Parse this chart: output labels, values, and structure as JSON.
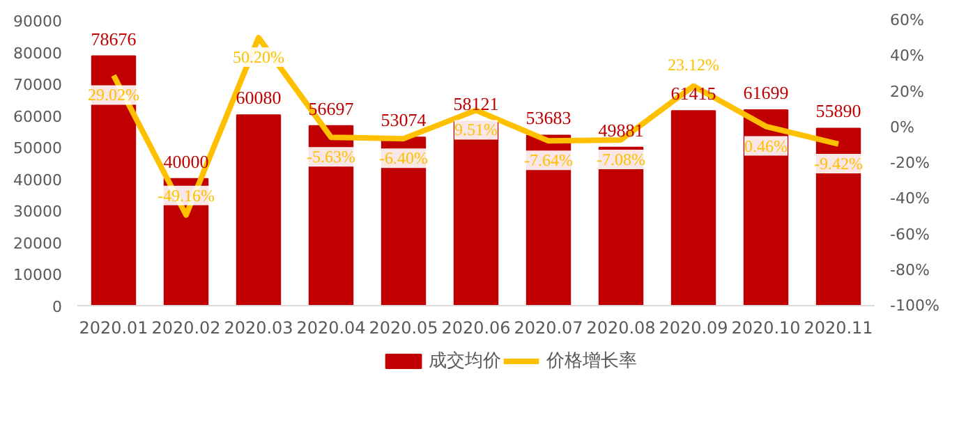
{
  "chart_data": {
    "type": "bar",
    "categories": [
      "2020.01",
      "2020.02",
      "2020.03",
      "2020.04",
      "2020.05",
      "2020.06",
      "2020.07",
      "2020.08",
      "2020.09",
      "2020.10",
      "2020.11"
    ],
    "series": [
      {
        "name": "成交均价",
        "color": "#c00000",
        "values": [
          78676,
          40000,
          60080,
          56697,
          53074,
          58121,
          53683,
          49881,
          61415,
          61699,
          55890
        ],
        "value_labels": [
          "78676",
          "40000",
          "60080",
          "56697",
          "53074",
          "58121",
          "53683",
          "49881",
          "61415",
          "61699",
          "55890"
        ]
      },
      {
        "name": "价格增长率",
        "type": "line",
        "axis": "y2",
        "color": "#ffc000",
        "values": [
          29.02,
          -49.16,
          50.2,
          -5.63,
          -6.4,
          9.51,
          -7.64,
          -7.08,
          23.12,
          0.46,
          -9.42
        ],
        "value_labels": [
          "29.02%",
          "-49.16%",
          "50.20%",
          "-5.63%",
          "-6.40%",
          "9.51%",
          "-7.64%",
          "-7.08%",
          "23.12%",
          "0.46%",
          "-9.42%"
        ]
      }
    ],
    "ylim": [
      0,
      90000
    ],
    "yticks": [
      0,
      10000,
      20000,
      30000,
      40000,
      50000,
      60000,
      70000,
      80000,
      90000
    ],
    "y2lim": [
      -100,
      60
    ],
    "y2ticks": [
      {
        "value": -100,
        "label": "-100%"
      },
      {
        "value": -80,
        "label": "-80%"
      },
      {
        "value": -60,
        "label": "-60%"
      },
      {
        "value": -40,
        "label": "-40%"
      },
      {
        "value": -20,
        "label": "-20%"
      },
      {
        "value": 0,
        "label": "0%"
      },
      {
        "value": 20,
        "label": "20%"
      },
      {
        "value": 40,
        "label": "40%"
      },
      {
        "value": 60,
        "label": "60%"
      }
    ],
    "grid": false,
    "legend": "bottom",
    "marker": "none",
    "line_style": "solid"
  }
}
